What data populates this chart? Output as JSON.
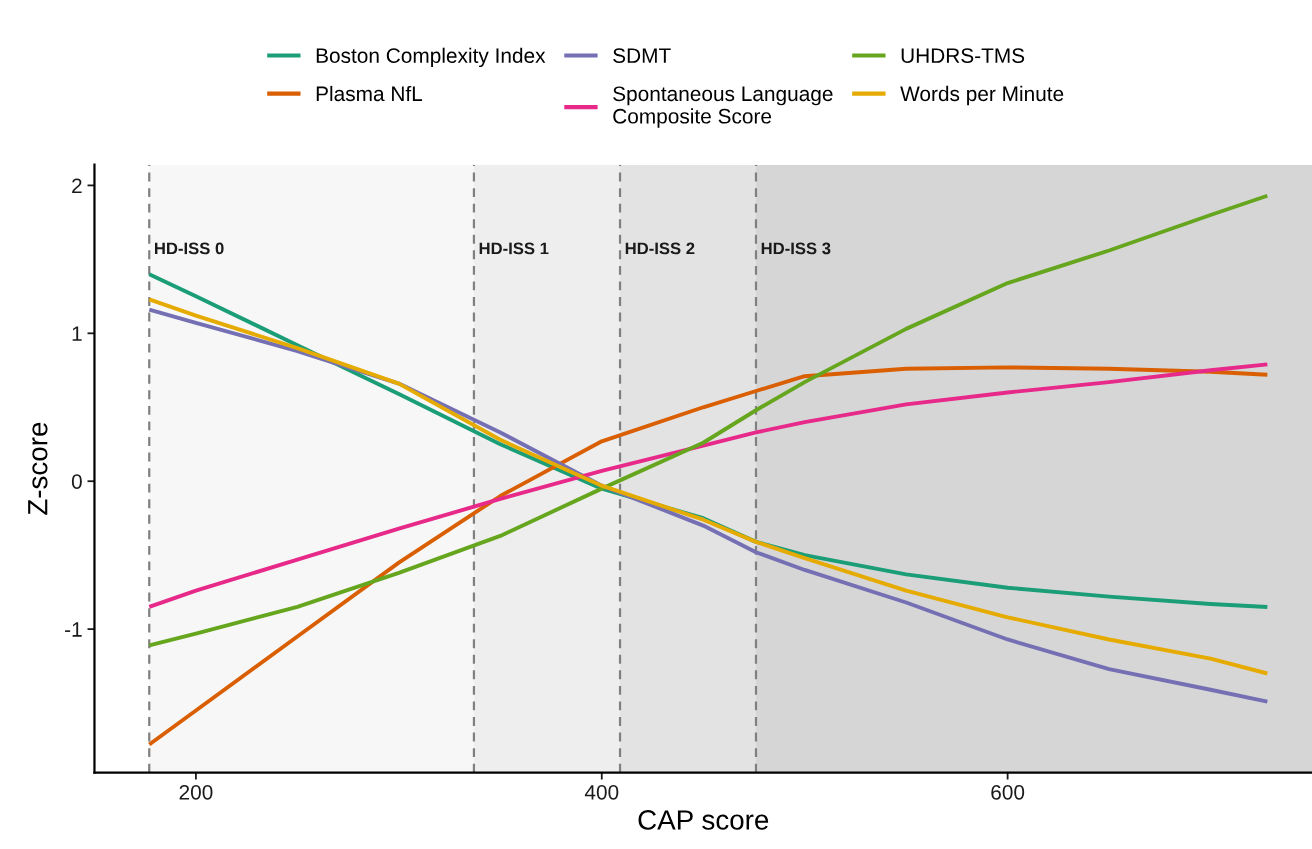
{
  "chart_data": {
    "type": "line",
    "xlabel": "CAP score",
    "ylabel": "Z-score",
    "x": [
      177,
      200,
      250,
      300,
      350,
      400,
      450,
      476,
      500,
      550,
      600,
      650,
      700,
      728
    ],
    "xlim": [
      150,
      750
    ],
    "xticks": [
      200,
      400,
      600
    ],
    "ylim": [
      -1.97,
      2.14
    ],
    "yticks": [
      -1,
      0,
      1,
      2
    ],
    "grid": false,
    "legend": "top",
    "line_style": "solid",
    "marker": "none",
    "series": [
      {
        "name": "Boston Complexity Index",
        "color": "#1b9e77",
        "values": [
          1.4,
          1.25,
          0.92,
          0.59,
          0.25,
          -0.05,
          -0.25,
          -0.41,
          -0.5,
          -0.63,
          -0.72,
          -0.78,
          -0.83,
          -0.85
        ]
      },
      {
        "name": "Plasma NfL",
        "color": "#d95f02",
        "values": [
          -1.78,
          -1.55,
          -1.05,
          -0.55,
          -0.1,
          0.27,
          0.5,
          0.61,
          0.71,
          0.76,
          0.77,
          0.76,
          0.74,
          0.72
        ]
      },
      {
        "name": "SDMT",
        "color": "#7570b3",
        "values": [
          1.16,
          1.07,
          0.88,
          0.66,
          0.33,
          -0.03,
          -0.3,
          -0.48,
          -0.6,
          -0.82,
          -1.07,
          -1.27,
          -1.41,
          -1.49
        ]
      },
      {
        "name": "Spontaneous Language\nComposite Score",
        "color": "#e7298a",
        "values": [
          -0.85,
          -0.74,
          -0.53,
          -0.32,
          -0.12,
          0.07,
          0.24,
          0.33,
          0.4,
          0.52,
          0.6,
          0.67,
          0.75,
          0.79
        ]
      },
      {
        "name": "UHDRS-TMS",
        "color": "#66a61e",
        "values": [
          -1.11,
          -1.03,
          -0.85,
          -0.62,
          -0.37,
          -0.05,
          0.26,
          0.48,
          0.67,
          1.03,
          1.34,
          1.56,
          1.8,
          1.93
        ]
      },
      {
        "name": "Words per Minute",
        "color": "#e6ab02",
        "values": [
          1.23,
          1.12,
          0.9,
          0.66,
          0.28,
          -0.03,
          -0.26,
          -0.41,
          -0.52,
          -0.74,
          -0.92,
          -1.07,
          -1.2,
          -1.3
        ]
      }
    ],
    "bands": [
      {
        "axis": "x",
        "from": 177,
        "to": 337,
        "label": "HD-ISS 0",
        "color": "#f7f7f7"
      },
      {
        "axis": "x",
        "from": 337,
        "to": 409,
        "label": "HD-ISS 1",
        "color": "#eeeeee"
      },
      {
        "axis": "x",
        "from": 409,
        "to": 476,
        "label": "HD-ISS 2",
        "color": "#e3e3e3"
      },
      {
        "axis": "x",
        "from": 476,
        "to": 750,
        "label": "HD-ISS 3",
        "color": "#d6d6d6"
      }
    ],
    "ref_lines": [
      {
        "axis": "x",
        "value": 177,
        "color": "#808080",
        "line_style": "dashed"
      },
      {
        "axis": "x",
        "value": 337,
        "color": "#808080",
        "line_style": "dashed"
      },
      {
        "axis": "x",
        "value": 409,
        "color": "#808080",
        "line_style": "dashed"
      },
      {
        "axis": "x",
        "value": 476,
        "color": "#808080",
        "line_style": "dashed"
      }
    ]
  }
}
